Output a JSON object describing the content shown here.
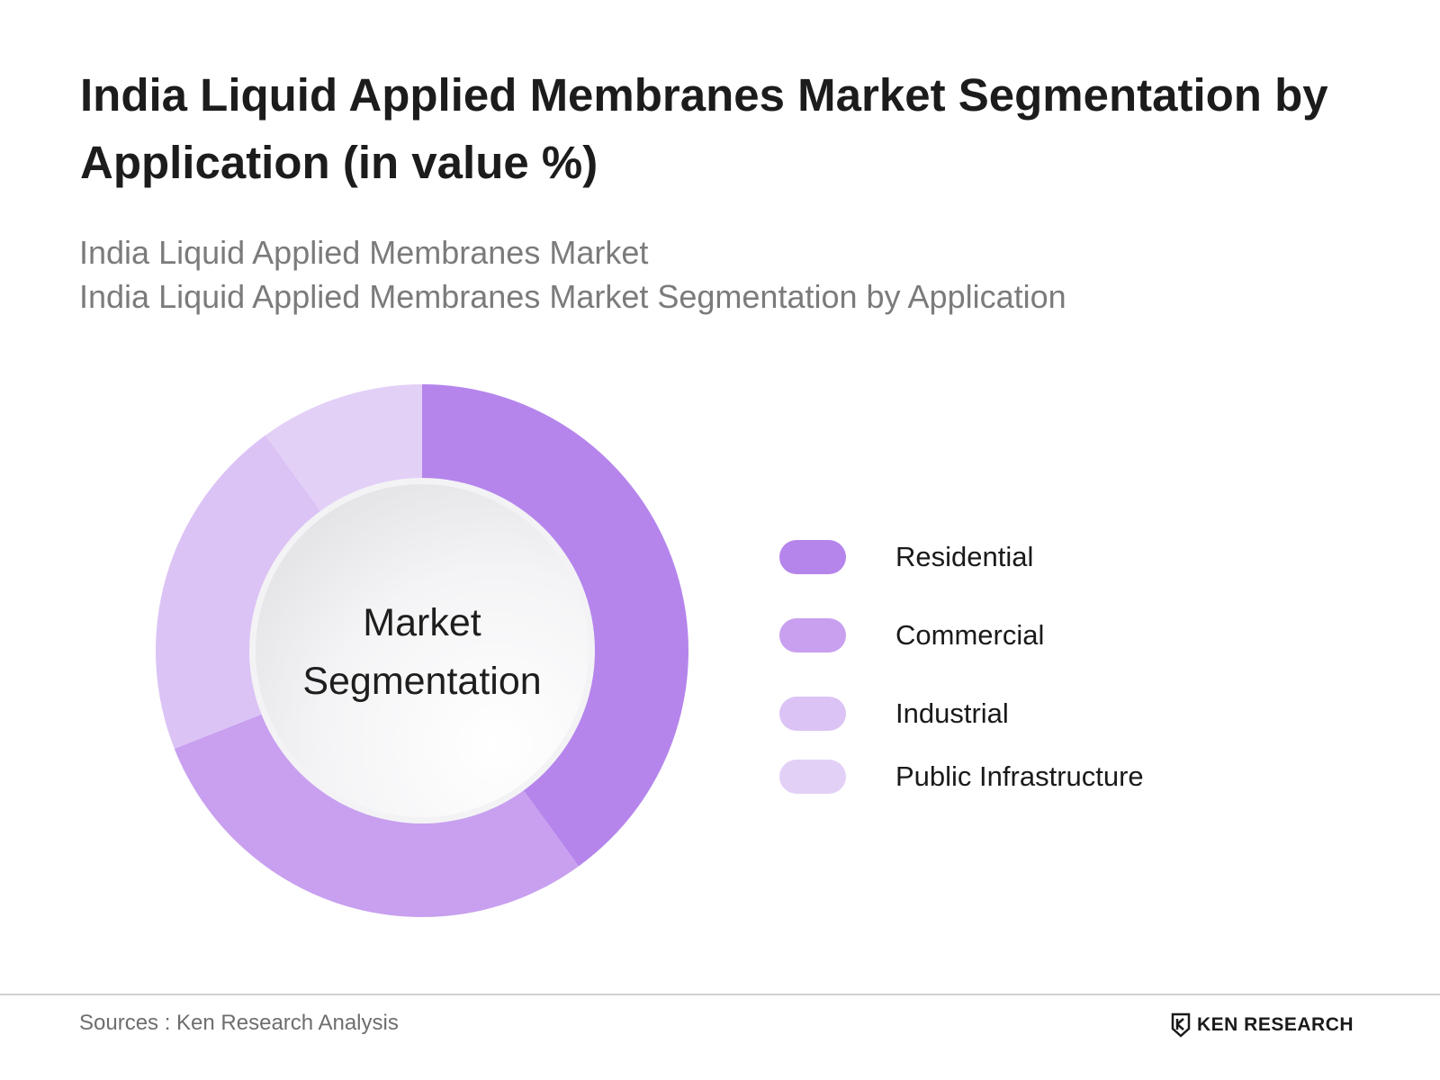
{
  "chart_data": {
    "type": "pie",
    "variant": "donut",
    "title": "India Liquid Applied Membranes Market Segmentation by Application (in value %)",
    "subtitle_lines": [
      "India Liquid Applied Membranes Market",
      "India Liquid Applied Membranes Market Segmentation by Application"
    ],
    "center_label": "Market Segmentation",
    "legend_position": "right",
    "categories": [
      "Residential",
      "Commercial",
      "Industrial",
      "Public Infrastructure"
    ],
    "values": [
      40,
      29,
      21,
      10
    ],
    "colors": [
      "#b585ec",
      "#c8a0ef",
      "#dcc3f5",
      "#e3d0f7"
    ]
  },
  "footer": {
    "source": "Sources : Ken Research Analysis",
    "brand": "KEN RESEARCH"
  }
}
